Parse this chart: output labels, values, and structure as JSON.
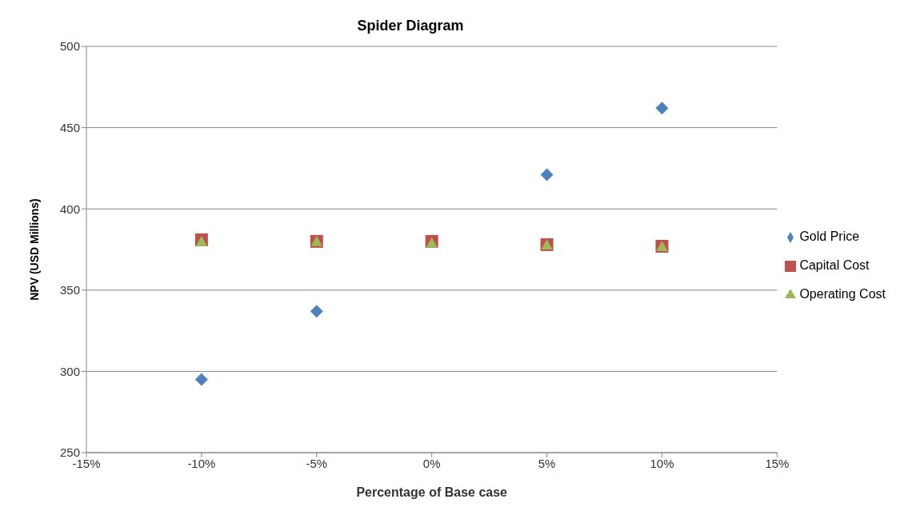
{
  "chart_data": {
    "type": "scatter",
    "title": "Spider Diagram",
    "xlabel": "Percentage of Base case",
    "ylabel": "NPV (USD Millions)",
    "x": [
      -10,
      -5,
      0,
      5,
      10
    ],
    "series": [
      {
        "name": "Gold Price",
        "color": "#4f81bd",
        "marker": "diamond",
        "values": [
          295,
          337,
          null,
          421,
          462
        ]
      },
      {
        "name": "Capital Cost",
        "color": "#c0504d",
        "marker": "square",
        "values": [
          381,
          380,
          380,
          378,
          377
        ]
      },
      {
        "name": "Operating Cost",
        "color": "#9bbb59",
        "marker": "triangle",
        "values": [
          380,
          380,
          379,
          378,
          377
        ]
      }
    ],
    "xlim": [
      -15,
      15
    ],
    "xticks": [
      {
        "value": -15,
        "label": "-15%"
      },
      {
        "value": -10,
        "label": "-10%"
      },
      {
        "value": -5,
        "label": "-5%"
      },
      {
        "value": 0,
        "label": "0%"
      },
      {
        "value": 5,
        "label": "5%"
      },
      {
        "value": 10,
        "label": "10%"
      },
      {
        "value": 15,
        "label": "15%"
      }
    ],
    "ylim": [
      250,
      500
    ],
    "yticks": [
      250,
      300,
      350,
      400,
      450,
      500
    ],
    "grid": "y",
    "legend": "right"
  }
}
